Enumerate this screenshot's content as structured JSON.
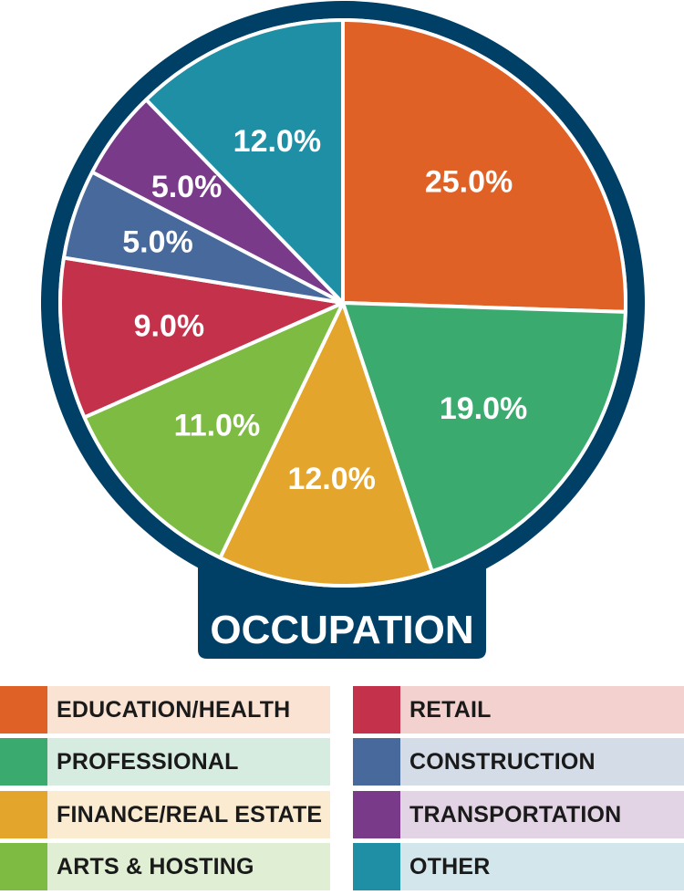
{
  "chart_data": {
    "type": "pie",
    "title": "OCCUPATION",
    "slices": [
      {
        "label": "EDUCATION/HEALTH",
        "value": 25.0,
        "display": "25.0%",
        "color": "#e06126",
        "legend_bg": "#fbe3d4"
      },
      {
        "label": "PROFESSIONAL",
        "value": 19.0,
        "display": "19.0%",
        "color": "#3aaa6e",
        "legend_bg": "#d7ece0"
      },
      {
        "label": "FINANCE/REAL ESTATE",
        "value": 12.0,
        "display": "12.0%",
        "color": "#e3a52b",
        "legend_bg": "#fbebd0"
      },
      {
        "label": "ARTS & HOSTING",
        "value": 11.0,
        "display": "11.0%",
        "color": "#7dbb42",
        "legend_bg": "#e0eed3"
      },
      {
        "label": "RETAIL",
        "value": 9.0,
        "display": "9.0%",
        "color": "#c4314b",
        "legend_bg": "#f2d1cf"
      },
      {
        "label": "CONSTRUCTION",
        "value": 5.0,
        "display": "5.0%",
        "color": "#48699b",
        "legend_bg": "#d4dce8"
      },
      {
        "label": "TRANSPORTATION",
        "value": 5.0,
        "display": "5.0%",
        "color": "#7a3a8a",
        "legend_bg": "#e2d4e5"
      },
      {
        "label": "OTHER",
        "value": 12.0,
        "display": "12.0%",
        "color": "#1f8fa6",
        "legend_bg": "#d3e6ec"
      }
    ],
    "frame_color": "#003f66",
    "legend_placement": "bottom"
  }
}
